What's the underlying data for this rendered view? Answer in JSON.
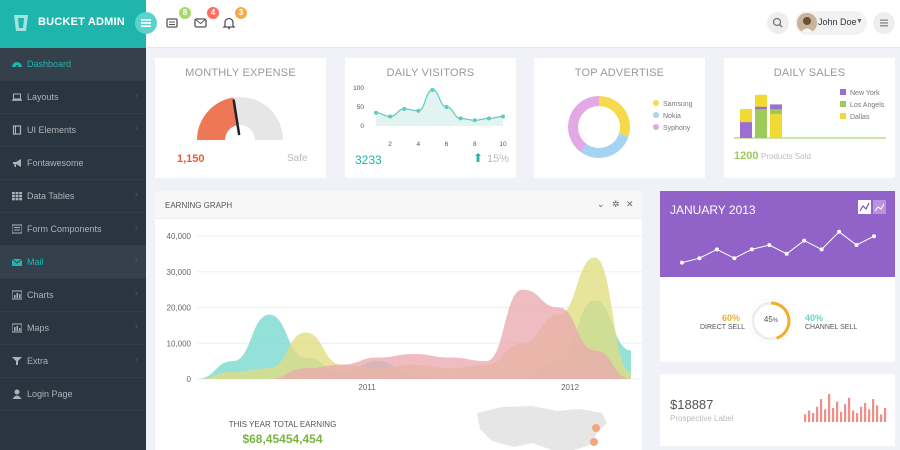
{
  "brand": {
    "name": "BUCKET ADMIN"
  },
  "topbar": {
    "badges": {
      "tasks": "8",
      "inbox": "4",
      "alerts": "3"
    },
    "user_name": "John Doe"
  },
  "sidebar": {
    "items": [
      {
        "label": "Dashboard",
        "icon": "dashboard-icon"
      },
      {
        "label": "Layouts",
        "icon": "laptop-icon"
      },
      {
        "label": "UI Elements",
        "icon": "book-icon"
      },
      {
        "label": "Fontawesome",
        "icon": "bullhorn-icon"
      },
      {
        "label": "Data Tables",
        "icon": "table-icon"
      },
      {
        "label": "Form Components",
        "icon": "list-icon"
      },
      {
        "label": "Mail",
        "icon": "envelope-icon"
      },
      {
        "label": "Charts",
        "icon": "bar-chart-icon"
      },
      {
        "label": "Maps",
        "icon": "map-icon"
      },
      {
        "label": "Extra",
        "icon": "filter-icon"
      },
      {
        "label": "Login Page",
        "icon": "user-icon"
      }
    ]
  },
  "widgets": {
    "monthly_expense": {
      "title": "MONTHLY EXPENSE",
      "value": "1,150",
      "status": "Safe",
      "gauge_fraction": 0.45
    },
    "daily_visitors": {
      "title": "DAILY VISITORS",
      "value": "3233",
      "change": "15%",
      "chart_data": {
        "type": "line",
        "x": [
          1,
          2,
          3,
          4,
          5,
          6,
          7,
          8,
          9,
          10
        ],
        "values": [
          35,
          25,
          45,
          40,
          95,
          50,
          20,
          15,
          20,
          25
        ],
        "xticks": [
          "2",
          "4",
          "6",
          "8",
          "10"
        ],
        "yticks": [
          "100",
          "50",
          "0"
        ],
        "ylim": [
          0,
          100
        ]
      }
    },
    "top_advertise": {
      "title": "TOP ADVERTISE",
      "chart_data": {
        "type": "pie",
        "labels": [
          "Samsung",
          "Nokia",
          "Syphony"
        ],
        "values": [
          30,
          30,
          40
        ],
        "colors": [
          "#f7d94c",
          "#a4d4f2",
          "#e2a9e5"
        ]
      }
    },
    "daily_sales": {
      "title": "DAILY SALES",
      "value": "1200",
      "caption": "Products Sold",
      "chart_data": {
        "type": "bar",
        "categories": [
          "1",
          "2",
          "3"
        ],
        "series": [
          {
            "name": "New York",
            "color": "#9c6ed1",
            "values": [
              33,
              65,
              70
            ]
          },
          {
            "name": "Los Angels",
            "color": "#9ccb5a",
            "values": [
              60,
              60,
              60
            ]
          },
          {
            "name": "Dallas",
            "color": "#f1db33",
            "values": [
              60,
              90,
              50
            ]
          }
        ]
      }
    }
  },
  "earning_graph": {
    "title": "EARNING GRAPH",
    "total_label": "THIS YEAR TOTAL EARNING",
    "total_value": "$68,45454,454",
    "chart_data": {
      "type": "area",
      "yticks": [
        "40,000",
        "30,000",
        "20,000",
        "10,000",
        "0"
      ],
      "xticks": [
        "2011",
        "2012"
      ],
      "ylim": [
        0,
        40000
      ],
      "series": [
        {
          "name": "teal",
          "color": "#76d8d0",
          "values": [
            0,
            5000,
            18000,
            6000,
            2000,
            5000,
            1000,
            0,
            0,
            0,
            5000,
            22000,
            8000
          ]
        },
        {
          "name": "olive",
          "color": "#e0dd80",
          "values": [
            0,
            2000,
            3000,
            13000,
            4000,
            3000,
            4000,
            3000,
            4000,
            10000,
            18000,
            34000,
            2000
          ]
        },
        {
          "name": "pink",
          "color": "#eba9b0",
          "values": [
            0,
            0,
            0,
            3000,
            4000,
            6000,
            7000,
            6000,
            5000,
            25000,
            20000,
            8000,
            0
          ]
        }
      ]
    }
  },
  "january": {
    "title": "JANUARY 2013",
    "chart_data": {
      "type": "line",
      "values": [
        10,
        20,
        40,
        20,
        40,
        50,
        30,
        60,
        40,
        80,
        50,
        70
      ]
    },
    "direct_sell": {
      "percent": "60%",
      "label": "DIRECT SELL"
    },
    "channel_sell": {
      "percent": "40%",
      "label": "CHANNEL SELL"
    },
    "center_label": {
      "value": "45",
      "unit": "%"
    },
    "donut_fraction": 0.45
  },
  "prospective": {
    "value": "$18887",
    "label": "Prospective Label",
    "chart_data": {
      "type": "bar",
      "values": [
        6,
        9,
        7,
        12,
        18,
        10,
        22,
        11,
        16,
        8,
        14,
        19,
        9,
        7,
        12,
        15,
        10,
        18,
        13,
        6,
        11
      ]
    }
  },
  "colors": {
    "teal": "#1fb5ac",
    "sidebar": "#2a3542",
    "purple": "#9162c8",
    "orange": "#f0ae2a",
    "coral": "#ee7856"
  }
}
